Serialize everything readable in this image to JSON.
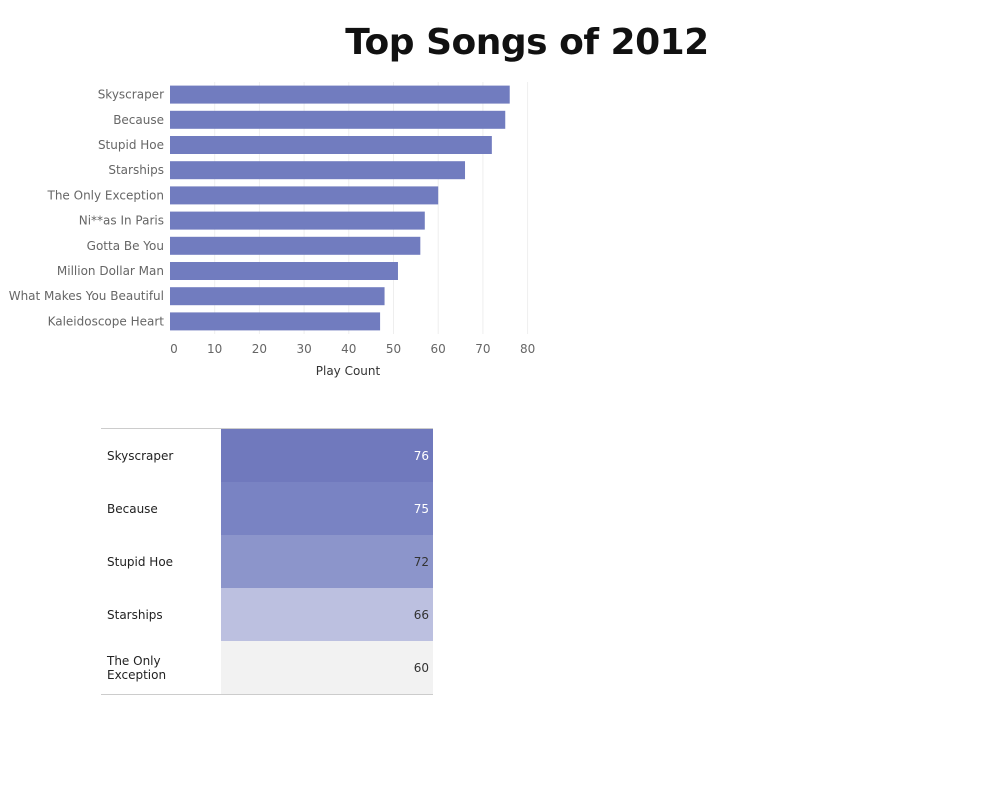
{
  "chart_data": [
    {
      "type": "bar",
      "orientation": "horizontal",
      "title": "Top Songs of 2012",
      "categories": [
        "Skyscraper",
        "Because",
        "Stupid Hoe",
        "Starships",
        "The Only Exception",
        "Ni**as In Paris",
        "Gotta Be You",
        "Million Dollar Man",
        "What Makes You Beautiful",
        "Kaleidoscope Heart"
      ],
      "values": [
        76,
        75,
        72,
        66,
        60,
        57,
        56,
        51,
        48,
        47
      ],
      "xlabel": "Play Count",
      "ylabel": "",
      "xlim": [
        0,
        80
      ],
      "ticks": [
        "0",
        "10",
        "20",
        "30",
        "40",
        "50",
        "60",
        "70",
        "80"
      ],
      "grid": true,
      "bar_color": "#717cbf"
    },
    {
      "type": "table",
      "categories": [
        "Skyscraper",
        "Because",
        "Stupid Hoe",
        "Starships",
        "The Only Exception"
      ],
      "values": [
        76,
        75,
        72,
        66,
        60
      ],
      "value_labels": [
        "76",
        "75",
        "72",
        "66",
        "60"
      ],
      "colors": [
        "#7079bd",
        "#7983c3",
        "#8c95cb",
        "#bcc0e0",
        "#f2f2f2"
      ]
    }
  ]
}
